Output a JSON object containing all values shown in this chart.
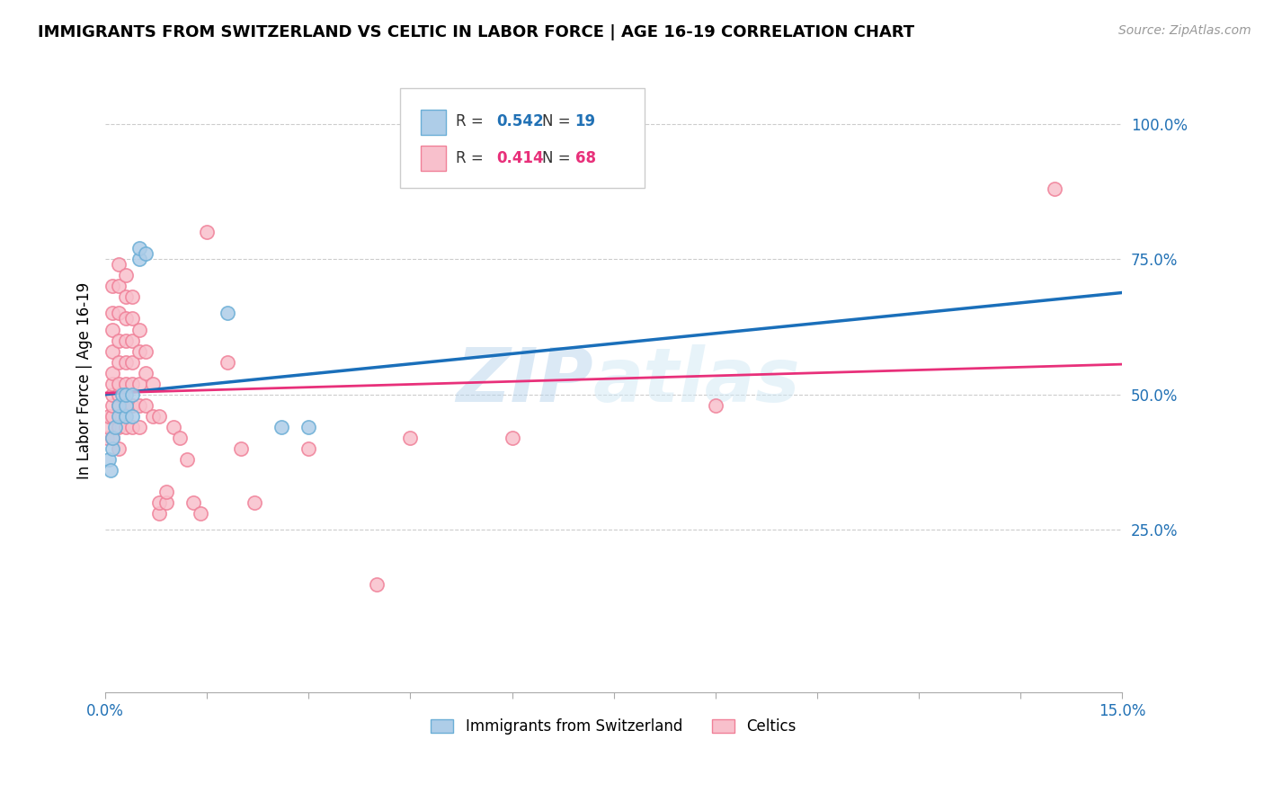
{
  "title": "IMMIGRANTS FROM SWITZERLAND VS CELTIC IN LABOR FORCE | AGE 16-19 CORRELATION CHART",
  "source": "Source: ZipAtlas.com",
  "ylabel": "In Labor Force | Age 16-19",
  "xlim": [
    0.0,
    0.15
  ],
  "ylim": [
    -0.05,
    1.1
  ],
  "xtick_positions": [
    0.0,
    0.015,
    0.03,
    0.045,
    0.06,
    0.075,
    0.09,
    0.105,
    0.12,
    0.135,
    0.15
  ],
  "yticks_right": [
    0.25,
    0.5,
    0.75,
    1.0
  ],
  "ytick_right_labels": [
    "25.0%",
    "50.0%",
    "75.0%",
    "100.0%"
  ],
  "swiss_color_edge": "#6baed6",
  "swiss_color_face": "#aecde8",
  "celtic_color_edge": "#f08098",
  "celtic_color_face": "#f8c0cc",
  "line_swiss_color": "#1a6fba",
  "line_celtic_color": "#e8307a",
  "R_swiss": 0.542,
  "N_swiss": 19,
  "R_celtic": 0.414,
  "N_celtic": 68,
  "legend_label_swiss": "Immigrants from Switzerland",
  "legend_label_celtic": "Celtics",
  "watermark_zip": "ZIP",
  "watermark_atlas": "atlas",
  "swiss_points": [
    [
      0.0005,
      0.38
    ],
    [
      0.0008,
      0.36
    ],
    [
      0.001,
      0.4
    ],
    [
      0.001,
      0.42
    ],
    [
      0.0015,
      0.44
    ],
    [
      0.002,
      0.46
    ],
    [
      0.002,
      0.48
    ],
    [
      0.0025,
      0.5
    ],
    [
      0.003,
      0.46
    ],
    [
      0.003,
      0.48
    ],
    [
      0.003,
      0.5
    ],
    [
      0.004,
      0.5
    ],
    [
      0.004,
      0.46
    ],
    [
      0.005,
      0.75
    ],
    [
      0.005,
      0.77
    ],
    [
      0.006,
      0.76
    ],
    [
      0.018,
      0.65
    ],
    [
      0.026,
      0.44
    ],
    [
      0.03,
      0.44
    ]
  ],
  "celtic_points": [
    [
      0.0003,
      0.42
    ],
    [
      0.0005,
      0.44
    ],
    [
      0.0005,
      0.46
    ],
    [
      0.001,
      0.42
    ],
    [
      0.001,
      0.46
    ],
    [
      0.001,
      0.48
    ],
    [
      0.001,
      0.5
    ],
    [
      0.001,
      0.52
    ],
    [
      0.001,
      0.54
    ],
    [
      0.001,
      0.58
    ],
    [
      0.001,
      0.62
    ],
    [
      0.001,
      0.65
    ],
    [
      0.001,
      0.7
    ],
    [
      0.002,
      0.4
    ],
    [
      0.002,
      0.44
    ],
    [
      0.002,
      0.48
    ],
    [
      0.002,
      0.5
    ],
    [
      0.002,
      0.52
    ],
    [
      0.002,
      0.56
    ],
    [
      0.002,
      0.6
    ],
    [
      0.002,
      0.65
    ],
    [
      0.002,
      0.7
    ],
    [
      0.002,
      0.74
    ],
    [
      0.003,
      0.44
    ],
    [
      0.003,
      0.48
    ],
    [
      0.003,
      0.52
    ],
    [
      0.003,
      0.56
    ],
    [
      0.003,
      0.6
    ],
    [
      0.003,
      0.64
    ],
    [
      0.003,
      0.68
    ],
    [
      0.003,
      0.72
    ],
    [
      0.004,
      0.44
    ],
    [
      0.004,
      0.48
    ],
    [
      0.004,
      0.52
    ],
    [
      0.004,
      0.56
    ],
    [
      0.004,
      0.6
    ],
    [
      0.004,
      0.64
    ],
    [
      0.004,
      0.68
    ],
    [
      0.005,
      0.44
    ],
    [
      0.005,
      0.48
    ],
    [
      0.005,
      0.52
    ],
    [
      0.005,
      0.58
    ],
    [
      0.005,
      0.62
    ],
    [
      0.006,
      0.48
    ],
    [
      0.006,
      0.54
    ],
    [
      0.006,
      0.58
    ],
    [
      0.007,
      0.46
    ],
    [
      0.007,
      0.52
    ],
    [
      0.008,
      0.28
    ],
    [
      0.008,
      0.3
    ],
    [
      0.008,
      0.46
    ],
    [
      0.009,
      0.3
    ],
    [
      0.009,
      0.32
    ],
    [
      0.01,
      0.44
    ],
    [
      0.011,
      0.42
    ],
    [
      0.012,
      0.38
    ],
    [
      0.013,
      0.3
    ],
    [
      0.014,
      0.28
    ],
    [
      0.015,
      0.8
    ],
    [
      0.018,
      0.56
    ],
    [
      0.02,
      0.4
    ],
    [
      0.022,
      0.3
    ],
    [
      0.03,
      0.4
    ],
    [
      0.04,
      0.15
    ],
    [
      0.045,
      0.42
    ],
    [
      0.06,
      0.42
    ],
    [
      0.09,
      0.48
    ],
    [
      0.14,
      0.88
    ]
  ]
}
